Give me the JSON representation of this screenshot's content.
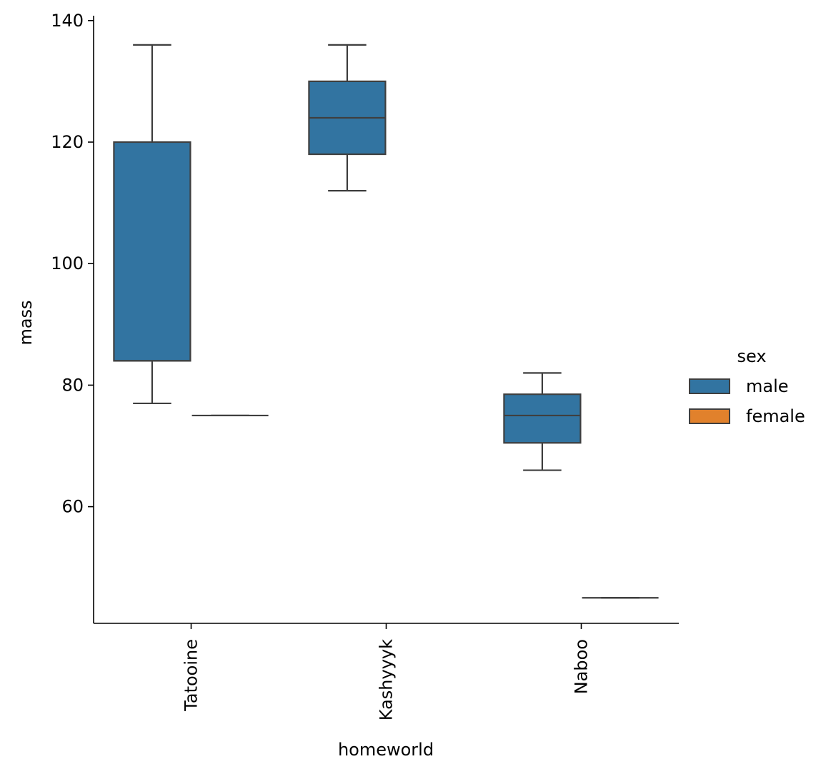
{
  "chart_data": {
    "type": "box",
    "title": "",
    "xlabel": "homeworld",
    "ylabel": "mass",
    "categories": [
      "Tatooine",
      "Kashyyyk",
      "Naboo"
    ],
    "yticks": [
      60,
      80,
      100,
      120,
      140
    ],
    "ylim": [
      40.8,
      140.8
    ],
    "legend": {
      "title": "sex",
      "position": "right"
    },
    "series": [
      {
        "name": "male",
        "color": "#3274a1",
        "boxes": [
          {
            "category": "Tatooine",
            "min": 77,
            "q1": 84,
            "median": 84,
            "q3": 120,
            "max": 136
          },
          {
            "category": "Kashyyyk",
            "min": 112,
            "q1": 118,
            "median": 124,
            "q3": 130,
            "max": 136
          },
          {
            "category": "Naboo",
            "min": 66,
            "q1": 70.5,
            "median": 75,
            "q3": 78.5,
            "max": 82
          }
        ]
      },
      {
        "name": "female",
        "color": "#e1812c",
        "boxes": [
          {
            "category": "Tatooine",
            "min": 75,
            "q1": 75,
            "median": 75,
            "q3": 75,
            "max": 75
          },
          {
            "category": "Naboo",
            "min": 45,
            "q1": 45,
            "median": 45,
            "q3": 45,
            "max": 45
          }
        ]
      }
    ]
  }
}
